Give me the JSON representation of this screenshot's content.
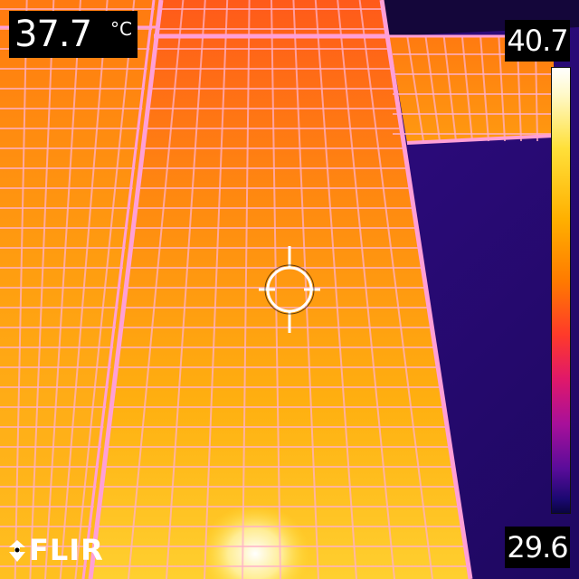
{
  "readout": {
    "spot_temperature": "37.7",
    "unit": "°C"
  },
  "scale": {
    "max": "40.7",
    "min": "29.6"
  },
  "brand": {
    "name": "FLIR"
  },
  "colors": {
    "hot": "#ffe03a",
    "warm": "#ff9a00",
    "cool": "#3a0c9a",
    "frame": "#ff8fd0"
  },
  "icons": [
    "crosshair-icon",
    "flir-logo-icon"
  ]
}
